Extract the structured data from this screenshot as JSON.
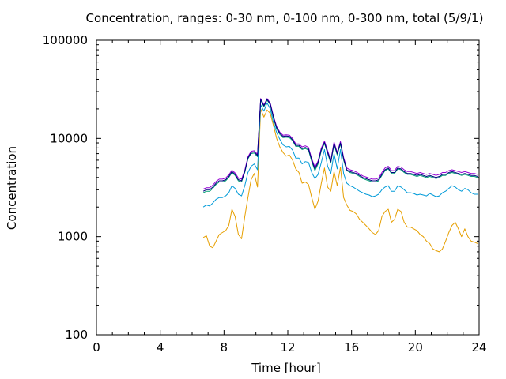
{
  "chart_data": {
    "type": "line",
    "title": "Concentration, ranges: 0-30 nm, 0-100 nm, 0-300 nm, total (5/9/1)",
    "xlabel": "Time [hour]",
    "ylabel": "Concentration",
    "xlim": [
      0,
      24
    ],
    "ylim": [
      100,
      100000
    ],
    "yscale": "log",
    "xticks": [
      "0",
      "4",
      "8",
      "12",
      "16",
      "20",
      "24"
    ],
    "yticks": [
      "100",
      "1000",
      "10000",
      "100000"
    ],
    "grid": false,
    "colors": [
      "#e69f00",
      "#009ad8",
      "#009e73",
      "#9400d3",
      "#000080"
    ],
    "series": [
      {
        "color": "#e69f00",
        "x": [
          6.7,
          6.9,
          7.1,
          7.3,
          7.5,
          7.7,
          7.9,
          8.1,
          8.3,
          8.5,
          8.7,
          8.9,
          9.1,
          9.3,
          9.5,
          9.7,
          9.9,
          10.1,
          10.3,
          10.5,
          10.7,
          10.9,
          11.1,
          11.3,
          11.5,
          11.7,
          11.9,
          12.1,
          12.3,
          12.5,
          12.7,
          12.9,
          13.1,
          13.3,
          13.5,
          13.7,
          13.9,
          14.1,
          14.3,
          14.5,
          14.7,
          14.9,
          15.1,
          15.3,
          15.5,
          15.7,
          15.9,
          16.1,
          16.3,
          16.5,
          16.7,
          16.9,
          17.1,
          17.3,
          17.5,
          17.7,
          17.9,
          18.1,
          18.3,
          18.5,
          18.7,
          18.9,
          19.1,
          19.3,
          19.5,
          19.7,
          19.9,
          20.1,
          20.3,
          20.5,
          20.7,
          20.9,
          21.1,
          21.3,
          21.5,
          21.7,
          21.9,
          22.1,
          22.3,
          22.5,
          22.7,
          22.9,
          23.1,
          23.3,
          23.5,
          23.7,
          23.9
        ],
        "y": [
          980,
          1020,
          800,
          770,
          900,
          1050,
          1100,
          1150,
          1300,
          1900,
          1600,
          1050,
          950,
          1600,
          2500,
          3800,
          4400,
          3200,
          20000,
          16500,
          19500,
          18000,
          13500,
          10000,
          8200,
          7200,
          6600,
          6800,
          6000,
          4900,
          4500,
          3500,
          3600,
          3400,
          2500,
          1900,
          2300,
          3500,
          5000,
          3200,
          2900,
          4600,
          3300,
          5100,
          2500,
          2100,
          1850,
          1800,
          1700,
          1500,
          1400,
          1300,
          1200,
          1100,
          1050,
          1150,
          1600,
          1800,
          1900,
          1400,
          1500,
          1900,
          1800,
          1400,
          1250,
          1250,
          1200,
          1150,
          1050,
          1000,
          900,
          850,
          750,
          720,
          700,
          750,
          900,
          1100,
          1300,
          1400,
          1200,
          1000,
          1200,
          1000,
          900,
          880,
          850
        ]
      },
      {
        "color": "#009ad8",
        "x": [
          6.7,
          6.9,
          7.1,
          7.3,
          7.5,
          7.7,
          7.9,
          8.1,
          8.3,
          8.5,
          8.7,
          8.9,
          9.1,
          9.3,
          9.5,
          9.7,
          9.9,
          10.1,
          10.3,
          10.5,
          10.7,
          10.9,
          11.1,
          11.3,
          11.5,
          11.7,
          11.9,
          12.1,
          12.3,
          12.5,
          12.7,
          12.9,
          13.1,
          13.3,
          13.5,
          13.7,
          13.9,
          14.1,
          14.3,
          14.5,
          14.7,
          14.9,
          15.1,
          15.3,
          15.5,
          15.7,
          15.9,
          16.1,
          16.3,
          16.5,
          16.7,
          16.9,
          17.1,
          17.3,
          17.5,
          17.7,
          17.9,
          18.1,
          18.3,
          18.5,
          18.7,
          18.9,
          19.1,
          19.3,
          19.5,
          19.7,
          19.9,
          20.1,
          20.3,
          20.5,
          20.7,
          20.9,
          21.1,
          21.3,
          21.5,
          21.7,
          21.9,
          22.1,
          22.3,
          22.5,
          22.7,
          22.9,
          23.1,
          23.3,
          23.5,
          23.7,
          23.9
        ],
        "y": [
          2000,
          2100,
          2050,
          2200,
          2400,
          2500,
          2500,
          2600,
          2800,
          3300,
          3100,
          2700,
          2600,
          3300,
          4500,
          5200,
          5500,
          4800,
          22000,
          19000,
          23000,
          20000,
          14500,
          11500,
          9800,
          8600,
          8200,
          8300,
          7600,
          6300,
          6300,
          5500,
          5800,
          5700,
          4500,
          3900,
          4300,
          5700,
          7700,
          5200,
          4400,
          7000,
          4900,
          7700,
          4400,
          3500,
          3300,
          3200,
          3050,
          2900,
          2800,
          2700,
          2650,
          2550,
          2600,
          2700,
          3000,
          3200,
          3300,
          2900,
          2900,
          3300,
          3200,
          3000,
          2800,
          2800,
          2750,
          2650,
          2700,
          2650,
          2600,
          2750,
          2650,
          2550,
          2600,
          2800,
          2900,
          3100,
          3300,
          3200,
          3000,
          2900,
          3100,
          3000,
          2800,
          2700,
          2700
        ]
      },
      {
        "color": "#009e73",
        "x": [
          6.7,
          6.9,
          7.1,
          7.3,
          7.5,
          7.7,
          7.9,
          8.1,
          8.3,
          8.5,
          8.7,
          8.9,
          9.1,
          9.3,
          9.5,
          9.7,
          9.9,
          10.1,
          10.3,
          10.5,
          10.7,
          10.9,
          11.1,
          11.3,
          11.5,
          11.7,
          11.9,
          12.1,
          12.3,
          12.5,
          12.7,
          12.9,
          13.1,
          13.3,
          13.5,
          13.7,
          13.9,
          14.1,
          14.3,
          14.5,
          14.7,
          14.9,
          15.1,
          15.3,
          15.5,
          15.7,
          15.9,
          16.1,
          16.3,
          16.5,
          16.7,
          16.9,
          17.1,
          17.3,
          17.5,
          17.7,
          17.9,
          18.1,
          18.3,
          18.5,
          18.7,
          18.9,
          19.1,
          19.3,
          19.5,
          19.7,
          19.9,
          20.1,
          20.3,
          20.5,
          20.7,
          20.9,
          21.1,
          21.3,
          21.5,
          21.7,
          21.9,
          22.1,
          22.3,
          22.5,
          22.7,
          22.9,
          23.1,
          23.3,
          23.5,
          23.7,
          23.9
        ],
        "y": [
          2800,
          2900,
          2900,
          3100,
          3400,
          3600,
          3600,
          3700,
          4000,
          4500,
          4200,
          3700,
          3600,
          4500,
          6200,
          7000,
          7100,
          6500,
          24500,
          21000,
          24500,
          22000,
          16000,
          12500,
          11000,
          10200,
          10300,
          10200,
          9500,
          8300,
          8300,
          7700,
          7900,
          7600,
          5800,
          4700,
          5500,
          7500,
          8900,
          7000,
          5600,
          8700,
          6800,
          8800,
          6000,
          4700,
          4500,
          4400,
          4300,
          4100,
          3900,
          3800,
          3700,
          3600,
          3600,
          3700,
          4200,
          4700,
          4900,
          4400,
          4400,
          4900,
          4800,
          4500,
          4300,
          4300,
          4200,
          4100,
          4200,
          4100,
          4000,
          4100,
          4000,
          3900,
          4000,
          4200,
          4200,
          4400,
          4500,
          4400,
          4300,
          4200,
          4300,
          4200,
          4100,
          4100,
          4000
        ]
      },
      {
        "color": "#9400d3",
        "x": [
          6.7,
          6.9,
          7.1,
          7.3,
          7.5,
          7.7,
          7.9,
          8.1,
          8.3,
          8.5,
          8.7,
          8.9,
          9.1,
          9.3,
          9.5,
          9.7,
          9.9,
          10.1,
          10.3,
          10.5,
          10.7,
          10.9,
          11.1,
          11.3,
          11.5,
          11.7,
          11.9,
          12.1,
          12.3,
          12.5,
          12.7,
          12.9,
          13.1,
          13.3,
          13.5,
          13.7,
          13.9,
          14.1,
          14.3,
          14.5,
          14.7,
          14.9,
          15.1,
          15.3,
          15.5,
          15.7,
          15.9,
          16.1,
          16.3,
          16.5,
          16.7,
          16.9,
          17.1,
          17.3,
          17.5,
          17.7,
          17.9,
          18.1,
          18.3,
          18.5,
          18.7,
          18.9,
          19.1,
          19.3,
          19.5,
          19.7,
          19.9,
          20.1,
          20.3,
          20.5,
          20.7,
          20.9,
          21.1,
          21.3,
          21.5,
          21.7,
          21.9,
          22.1,
          22.3,
          22.5,
          22.7,
          22.9,
          23.1,
          23.3,
          23.5,
          23.7,
          23.9
        ],
        "y": [
          3050,
          3150,
          3150,
          3350,
          3650,
          3850,
          3850,
          3950,
          4250,
          4750,
          4450,
          3950,
          3850,
          4750,
          6500,
          7400,
          7500,
          6900,
          25500,
          22000,
          25500,
          23000,
          16800,
          13200,
          11600,
          10800,
          10900,
          10800,
          10000,
          8800,
          8800,
          8200,
          8400,
          8100,
          6200,
          5100,
          5900,
          8000,
          9400,
          7500,
          6000,
          9200,
          7200,
          9300,
          6400,
          5000,
          4800,
          4700,
          4550,
          4350,
          4150,
          4050,
          3950,
          3850,
          3850,
          3950,
          4500,
          5000,
          5200,
          4700,
          4700,
          5200,
          5100,
          4800,
          4600,
          4600,
          4500,
          4400,
          4500,
          4400,
          4300,
          4400,
          4300,
          4200,
          4300,
          4500,
          4500,
          4700,
          4800,
          4700,
          4600,
          4500,
          4600,
          4500,
          4400,
          4400,
          4300
        ]
      },
      {
        "color": "#000080",
        "x": [
          6.7,
          6.9,
          7.1,
          7.3,
          7.5,
          7.7,
          7.9,
          8.1,
          8.3,
          8.5,
          8.7,
          8.9,
          9.1,
          9.3,
          9.5,
          9.7,
          9.9,
          10.1,
          10.3,
          10.5,
          10.7,
          10.9,
          11.1,
          11.3,
          11.5,
          11.7,
          11.9,
          12.1,
          12.3,
          12.5,
          12.7,
          12.9,
          13.1,
          13.3,
          13.5,
          13.7,
          13.9,
          14.1,
          14.3,
          14.5,
          14.7,
          14.9,
          15.1,
          15.3,
          15.5,
          15.7,
          15.9,
          16.1,
          16.3,
          16.5,
          16.7,
          16.9,
          17.1,
          17.3,
          17.5,
          17.7,
          17.9,
          18.1,
          18.3,
          18.5,
          18.7,
          18.9,
          19.1,
          19.3,
          19.5,
          19.7,
          19.9,
          20.1,
          20.3,
          20.5,
          20.7,
          20.9,
          21.1,
          21.3,
          21.5,
          21.7,
          21.9,
          22.1,
          22.3,
          22.5,
          22.7,
          22.9,
          23.1,
          23.3,
          23.5,
          23.7,
          23.9
        ],
        "y": [
          2900,
          3000,
          3000,
          3200,
          3500,
          3700,
          3700,
          3800,
          4100,
          4600,
          4300,
          3800,
          3700,
          4600,
          6300,
          7200,
          7300,
          6700,
          25000,
          21500,
          25000,
          22500,
          16400,
          12900,
          11300,
          10500,
          10600,
          10500,
          9700,
          8500,
          8500,
          7900,
          8100,
          7800,
          6000,
          4900,
          5700,
          7700,
          9100,
          7200,
          5800,
          8900,
          7000,
          9000,
          6200,
          4800,
          4600,
          4500,
          4400,
          4200,
          4000,
          3900,
          3800,
          3700,
          3700,
          3800,
          4300,
          4800,
          5000,
          4500,
          4500,
          5000,
          4900,
          4600,
          4400,
          4400,
          4300,
          4200,
          4300,
          4200,
          4100,
          4200,
          4100,
          4000,
          4100,
          4300,
          4300,
          4500,
          4600,
          4500,
          4400,
          4300,
          4400,
          4300,
          4200,
          4200,
          4100
        ]
      }
    ]
  }
}
